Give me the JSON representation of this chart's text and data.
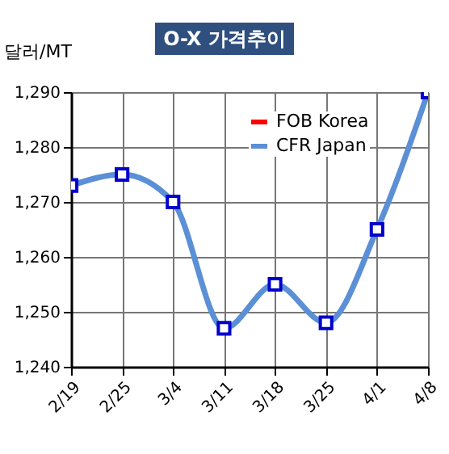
{
  "chart_data": {
    "type": "line",
    "title": "O-X 가격추이",
    "ylabel": "달러/MT",
    "categories": [
      "2/19",
      "2/25",
      "3/4",
      "3/11",
      "3/18",
      "3/25",
      "4/1",
      "4/8"
    ],
    "series": [
      {
        "name": "FOB Korea",
        "color": "#ff0000",
        "marker": "diamond",
        "values": [
          null,
          null,
          null,
          null,
          null,
          null,
          null,
          null
        ]
      },
      {
        "name": "CFR Japan",
        "color": "#5b8fd6",
        "marker": "square",
        "values": [
          1273,
          1275,
          1270,
          1247,
          1255,
          1248,
          1265,
          1290
        ]
      }
    ],
    "ylim": [
      1240,
      1290
    ],
    "yticks": [
      {
        "value": 1240,
        "label": "1,240"
      },
      {
        "value": 1250,
        "label": "1,250"
      },
      {
        "value": 1260,
        "label": "1,260"
      },
      {
        "value": 1270,
        "label": "1,270"
      },
      {
        "value": 1280,
        "label": "1,280"
      },
      {
        "value": 1290,
        "label": "1,290"
      }
    ],
    "grid": true,
    "legend": "top right",
    "line_style": "solid"
  }
}
